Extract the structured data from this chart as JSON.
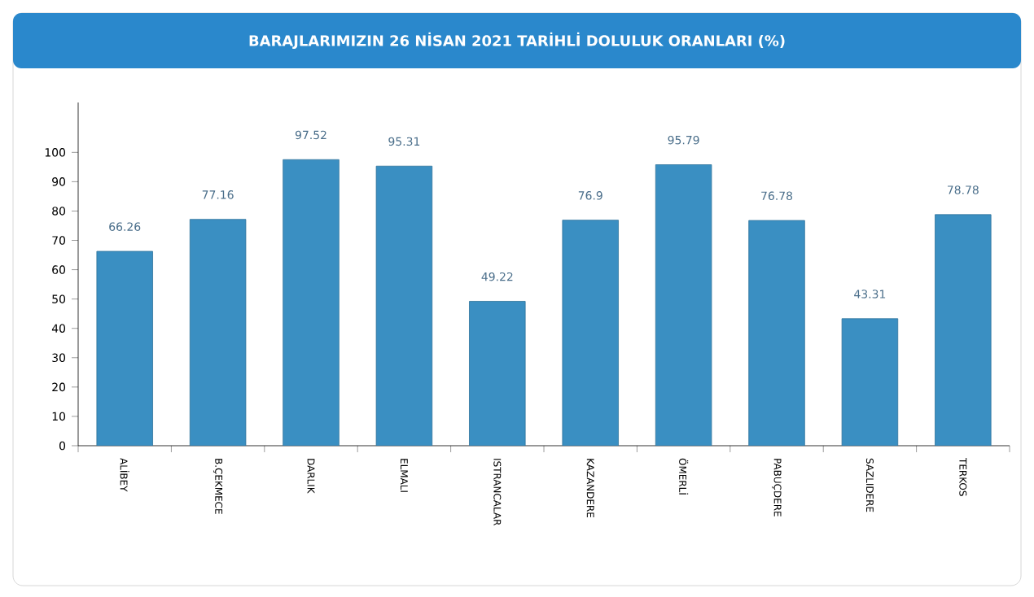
{
  "chart_data": {
    "type": "bar",
    "title": "BARAJLARIMIZIN 26 NİSAN 2021 TARİHLİ DOLULUK ORANLARI (%)",
    "categories": [
      "ALİBEY",
      "B.ÇEKMECE",
      "DARLIK",
      "ELMALI",
      "ISTRANCALAR",
      "KAZANDERE",
      "ÖMERLİ",
      "PABUÇDERE",
      "SAZLIDERE",
      "TERKOS"
    ],
    "values": [
      66.26,
      77.16,
      97.52,
      95.31,
      49.22,
      76.9,
      95.79,
      76.78,
      43.31,
      78.78
    ],
    "color": "#3a8fc2",
    "data_labels": true,
    "grid": false,
    "ylim": [
      0,
      117
    ],
    "yticks": [
      0,
      10,
      20,
      30,
      40,
      50,
      60,
      70,
      80,
      90,
      100
    ]
  }
}
